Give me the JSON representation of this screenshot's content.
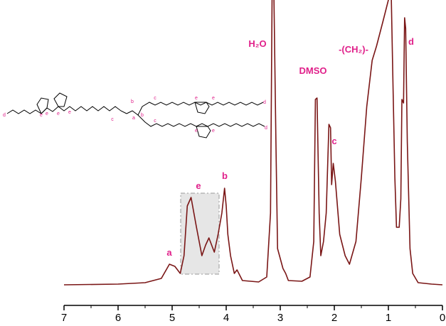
{
  "chart_data": {
    "type": "line",
    "x": [
      7.0,
      6.0,
      5.5,
      5.2,
      5.05,
      4.95,
      4.85,
      4.78,
      4.72,
      4.65,
      4.55,
      4.45,
      4.38,
      4.32,
      4.22,
      4.15,
      4.08,
      4.03,
      4.0,
      3.97,
      3.92,
      3.85,
      3.8,
      3.7,
      3.4,
      3.25,
      3.18,
      3.15,
      3.12,
      3.08,
      3.05,
      2.95,
      2.9,
      2.85,
      2.6,
      2.45,
      2.38,
      2.35,
      2.32,
      2.28,
      2.25,
      2.2,
      2.15,
      2.1,
      2.07,
      2.05,
      2.02,
      1.98,
      1.9,
      1.8,
      1.72,
      1.6,
      1.5,
      1.4,
      1.3,
      1.22,
      1.1,
      1.0,
      0.95,
      0.92,
      0.88,
      0.85,
      0.8,
      0.77,
      0.75,
      0.72,
      0.7,
      0.68,
      0.65,
      0.6,
      0.55,
      0.45,
      0.2,
      0.0
    ],
    "series": [
      {
        "color": "#7a1616",
        "values": [
          0,
          1,
          3,
          9,
          29,
          26,
          16,
          41,
          111,
          123,
          81,
          41,
          56,
          66,
          46,
          71,
          101,
          136,
          111,
          71,
          41,
          16,
          21,
          6,
          4,
          11,
          101,
          420,
          420,
          201,
          51,
          23,
          16,
          6,
          5,
          11,
          61,
          261,
          263,
          101,
          41,
          61,
          101,
          226,
          221,
          141,
          171,
          146,
          71,
          41,
          29,
          61,
          151,
          251,
          316,
          336,
          371,
          401,
          420,
          301,
          151,
          81,
          81,
          121,
          261,
          256,
          376,
          361,
          201,
          51,
          16,
          3,
          1,
          0
        ]
      }
    ],
    "xlim": [
      7,
      0
    ],
    "ylim": [
      0,
      401
    ],
    "xticks": [
      7,
      6,
      5,
      4,
      3,
      2,
      1,
      0
    ],
    "annotations": [
      "H₂O",
      "DMSO",
      "-(CH₂)-",
      "d",
      "c",
      "b",
      "e",
      "a"
    ],
    "structure_labels": [
      "d",
      "e",
      "e",
      "e",
      "e",
      "c",
      "a",
      "b",
      "b",
      "c",
      "c",
      "e",
      "e",
      "d",
      "e",
      "e",
      "d"
    ]
  }
}
